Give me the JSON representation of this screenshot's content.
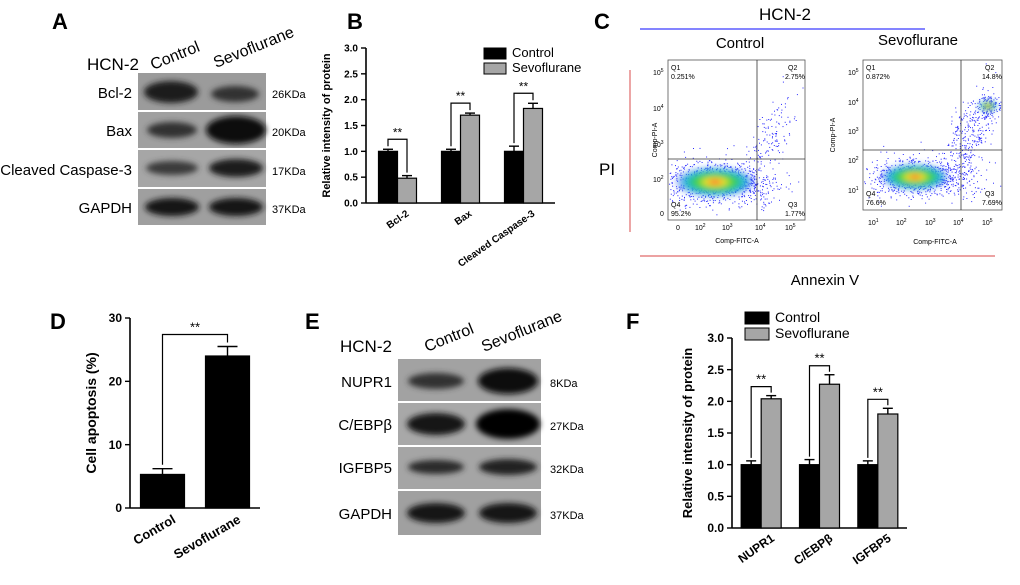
{
  "colors": {
    "control": "#000000",
    "sevoflurane": "#a6a6a6",
    "flow_line": "#3a3aff",
    "accent_red": "#e06a6a"
  },
  "panel_letters": {
    "a": "A",
    "b": "B",
    "c": "C",
    "d": "D",
    "e": "E",
    "f": "F"
  },
  "panel_a": {
    "cell_line": "HCN-2",
    "lanes": [
      "Control",
      "Sevoflurane"
    ],
    "rows": [
      {
        "label": "Bcl-2",
        "size": "26KDa"
      },
      {
        "label": "Bax",
        "size": "20KDa"
      },
      {
        "label": "Cleaved Caspase-3",
        "size": "17KDa"
      },
      {
        "label": "GAPDH",
        "size": "37KDa"
      }
    ]
  },
  "panel_c": {
    "title": "HCN-2",
    "y_stain": "PI",
    "x_stain": "Annexin V",
    "plots": [
      {
        "title": "Control",
        "q1": "Q1",
        "q1v": "0.251%",
        "q2": "Q2",
        "q2v": "2.75%",
        "q3": "Q3",
        "q3v": "1.77%",
        "q4": "Q4",
        "q4v": "95.2%",
        "xlabel": "Comp-FITC-A",
        "ylabel": "Comp-PI-A"
      },
      {
        "title": "Sevoflurane",
        "q1": "Q1",
        "q1v": "0.872%",
        "q2": "Q2",
        "q2v": "14.8%",
        "q3": "Q3",
        "q3v": "7.69%",
        "q4": "Q4",
        "q4v": "76.6%",
        "xlabel": "Comp-FITC-A",
        "ylabel": "Comp-PI-A"
      }
    ]
  },
  "panel_e": {
    "cell_line": "HCN-2",
    "lanes": [
      "Control",
      "Sevoflurane"
    ],
    "rows": [
      {
        "label": "NUPR1",
        "size": "8KDa"
      },
      {
        "label": "C/EBPβ",
        "size": "27KDa"
      },
      {
        "label": "IGFBP5",
        "size": "32KDa"
      },
      {
        "label": "GAPDH",
        "size": "37KDa"
      }
    ]
  },
  "chart_data": [
    {
      "id": "B",
      "type": "bar",
      "title": "",
      "ylabel": "Relative intensity of protein",
      "xlabel": "",
      "ylim": [
        0,
        3.0
      ],
      "yticks": [
        "0.0",
        "0.5",
        "1.0",
        "1.5",
        "2.0",
        "2.5",
        "3.0"
      ],
      "categories": [
        "Bcl-2",
        "Bax",
        "Cleaved Caspase-3"
      ],
      "series": [
        {
          "name": "Control",
          "values": [
            1.0,
            1.0,
            1.0
          ],
          "errors": [
            0.04,
            0.04,
            0.1
          ]
        },
        {
          "name": "Sevoflurane",
          "values": [
            0.48,
            1.7,
            1.83
          ],
          "errors": [
            0.05,
            0.04,
            0.1
          ]
        }
      ],
      "significance": [
        "**",
        "**",
        "**"
      ]
    },
    {
      "id": "D",
      "type": "bar",
      "title": "",
      "ylabel": "Cell apoptosis (%)",
      "xlabel": "",
      "ylim": [
        0,
        30
      ],
      "yticks": [
        "0",
        "10",
        "20",
        "30"
      ],
      "categories": [
        "Control",
        "Sevoflurane"
      ],
      "series": [
        {
          "name": "Cell apoptosis",
          "values": [
            5.3,
            24.0
          ],
          "errors": [
            0.9,
            1.5
          ]
        }
      ],
      "significance": [
        "**"
      ]
    },
    {
      "id": "F",
      "type": "bar",
      "title": "",
      "ylabel": "Relative intensity of protein",
      "xlabel": "",
      "ylim": [
        0,
        3.0
      ],
      "yticks": [
        "0.0",
        "0.5",
        "1.0",
        "1.5",
        "2.0",
        "2.5",
        "3.0"
      ],
      "categories": [
        "NUPR1",
        "C/EBPβ",
        "IGFBP5"
      ],
      "series": [
        {
          "name": "Control",
          "values": [
            1.0,
            1.0,
            1.0
          ],
          "errors": [
            0.06,
            0.08,
            0.06
          ]
        },
        {
          "name": "Sevoflurane",
          "values": [
            2.04,
            2.27,
            1.8
          ],
          "errors": [
            0.05,
            0.15,
            0.09
          ]
        }
      ],
      "significance": [
        "**",
        "**",
        "**"
      ]
    }
  ]
}
